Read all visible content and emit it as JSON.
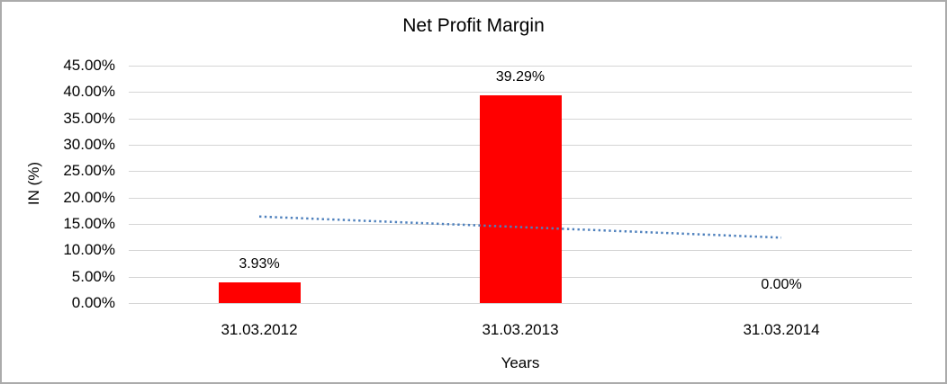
{
  "chart": {
    "title": "Net Profit Margin",
    "x_axis_title": "Years",
    "y_axis_title": "IN (%)"
  },
  "chart_data": {
    "type": "bar",
    "title": "Net Profit Margin",
    "xlabel": "Years",
    "ylabel": "IN (%)",
    "categories": [
      "31.03.2012",
      "31.03.2013",
      "31.03.2014"
    ],
    "values": [
      3.93,
      39.29,
      0.0
    ],
    "data_labels": [
      "3.93%",
      "39.29%",
      "0.00%"
    ],
    "ylim": [
      0,
      45
    ],
    "ytick_step": 5,
    "ytick_labels": [
      "45.00%",
      "40.00%",
      "35.00%",
      "30.00%",
      "25.00%",
      "20.00%",
      "15.00%",
      "10.00%",
      "5.00%",
      "0.00%"
    ],
    "grid": true,
    "legend": null,
    "bar_color": "#ff0000",
    "gridline_color": "#d5d5d5",
    "trendline": {
      "type": "linear",
      "style": "dotted",
      "color": "#4f81bd",
      "start_value": 16.4,
      "end_value": 12.4
    }
  }
}
